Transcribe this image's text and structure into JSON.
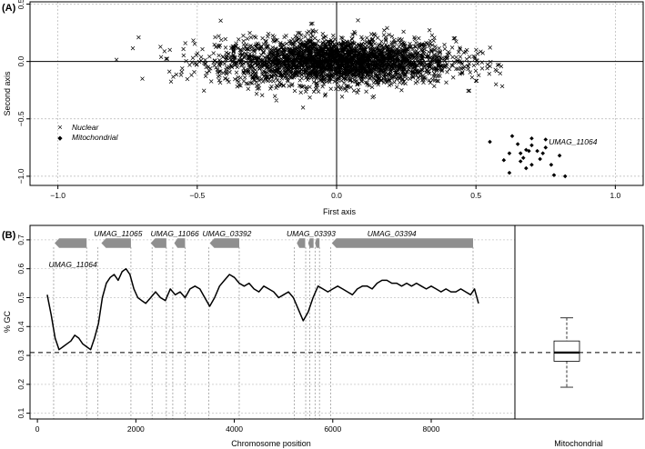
{
  "chart_data": [
    {
      "panel_label": "(A)",
      "type": "scatter",
      "xlabel": "First axis",
      "ylabel": "Second axis",
      "xlim": [
        -1.1,
        1.1
      ],
      "ylim": [
        -1.08,
        0.52
      ],
      "xticks": [
        "−1.0",
        "−0.5",
        "0.0",
        "0.5",
        "1.0"
      ],
      "xtick_values": [
        -1.0,
        -0.5,
        0.0,
        0.5,
        1.0
      ],
      "yticks": [
        "−1.0",
        "−0.5",
        "0.0",
        "0.5"
      ],
      "ytick_values": [
        -1.0,
        -0.5,
        0.0,
        0.5
      ],
      "grid": true,
      "legend": {
        "position": "left",
        "entries": [
          {
            "marker": "×",
            "label": "Nuclear"
          },
          {
            "marker": "◆",
            "label": "Mitochondrial"
          }
        ]
      },
      "annotation": {
        "text": "UMAG_11064",
        "x": 0.82,
        "y": -0.7
      },
      "series": [
        {
          "name": "Nuclear",
          "marker": "x",
          "distribution": {
            "x_mean": 0.0,
            "x_sd": 0.21,
            "y_mean": 0.0,
            "y_sd": 0.1,
            "count": 3000
          }
        },
        {
          "name": "Mitochondrial",
          "marker": "diamond",
          "points": [
            [
              0.55,
              -0.7
            ],
            [
              0.63,
              -0.65
            ],
            [
              0.65,
              -0.72
            ],
            [
              0.62,
              -0.8
            ],
            [
              0.66,
              -0.8
            ],
            [
              0.68,
              -0.77
            ],
            [
              0.7,
              -0.73
            ],
            [
              0.69,
              -0.78
            ],
            [
              0.72,
              -0.78
            ],
            [
              0.75,
              -0.75
            ],
            [
              0.73,
              -0.85
            ],
            [
              0.7,
              -0.9
            ],
            [
              0.68,
              -0.93
            ],
            [
              0.66,
              -0.87
            ],
            [
              0.62,
              -0.97
            ],
            [
              0.77,
              -0.9
            ],
            [
              0.8,
              -0.82
            ],
            [
              0.78,
              -0.99
            ],
            [
              0.82,
              -1.0
            ],
            [
              0.6,
              -0.86
            ],
            [
              0.75,
              -0.68
            ],
            [
              0.7,
              -0.67
            ],
            [
              0.67,
              -0.84
            ],
            [
              0.74,
              -0.8
            ]
          ]
        }
      ]
    },
    {
      "panel_label": "(B)",
      "type": "line",
      "xlabel": "Chromosome position",
      "ylabel": "% GC",
      "xlim": [
        -150,
        9700
      ],
      "ylim": [
        0.08,
        0.75
      ],
      "xticks": [
        "0",
        "2000",
        "4000",
        "6000",
        "8000"
      ],
      "xtick_values": [
        0,
        2000,
        4000,
        6000,
        8000
      ],
      "yticks": [
        "0.1",
        "0.2",
        "0.3",
        "0.4",
        "0.5",
        "0.6",
        "0.7"
      ],
      "ytick_values": [
        0.1,
        0.2,
        0.3,
        0.4,
        0.5,
        0.6,
        0.7
      ],
      "reference_line": 0.31,
      "gene_labels": [
        {
          "text": "UMAG_11064",
          "x": 720,
          "y": 0.605
        },
        {
          "text": "UMAG_11065",
          "x": 1640,
          "y": 0.712
        },
        {
          "text": "UMAG_11066",
          "x": 2790,
          "y": 0.712
        },
        {
          "text": "UMAG_03392",
          "x": 3850,
          "y": 0.712
        },
        {
          "text": "UMAG_03393",
          "x": 5560,
          "y": 0.712
        },
        {
          "text": "UMAG_03394",
          "x": 7200,
          "y": 0.712
        }
      ],
      "genes": [
        [
          350,
          1000
        ],
        [
          1300,
          1900
        ],
        [
          2300,
          2620
        ],
        [
          2780,
          3000
        ],
        [
          3500,
          4100
        ],
        [
          5270,
          5440
        ],
        [
          5500,
          5610
        ],
        [
          5640,
          5730
        ],
        [
          5980,
          8850
        ]
      ],
      "gene_boundaries": [
        330,
        1000,
        1230,
        1900,
        2330,
        2620,
        2750,
        3000,
        3480,
        4100,
        5220,
        5450,
        5530,
        5640,
        5730,
        5960,
        8850
      ],
      "series": [
        {
          "name": "GC content",
          "x": [
            200,
            280,
            360,
            440,
            520,
            600,
            680,
            760,
            840,
            920,
            1000,
            1080,
            1160,
            1240,
            1320,
            1400,
            1480,
            1560,
            1640,
            1720,
            1800,
            1880,
            1960,
            2040,
            2120,
            2200,
            2300,
            2400,
            2500,
            2600,
            2700,
            2800,
            2900,
            3000,
            3100,
            3200,
            3300,
            3400,
            3500,
            3600,
            3700,
            3800,
            3900,
            4000,
            4100,
            4200,
            4300,
            4400,
            4500,
            4600,
            4700,
            4800,
            4900,
            5000,
            5100,
            5200,
            5300,
            5400,
            5500,
            5600,
            5700,
            5800,
            5900,
            6000,
            6100,
            6200,
            6300,
            6400,
            6500,
            6600,
            6700,
            6800,
            6900,
            7000,
            7100,
            7200,
            7300,
            7400,
            7500,
            7600,
            7700,
            7800,
            7900,
            8000,
            8100,
            8200,
            8300,
            8400,
            8500,
            8600,
            8700,
            8800,
            8880,
            8960
          ],
          "values": [
            0.51,
            0.44,
            0.36,
            0.32,
            0.33,
            0.34,
            0.35,
            0.37,
            0.36,
            0.34,
            0.33,
            0.32,
            0.36,
            0.41,
            0.5,
            0.55,
            0.57,
            0.58,
            0.56,
            0.59,
            0.6,
            0.58,
            0.53,
            0.5,
            0.49,
            0.48,
            0.5,
            0.52,
            0.5,
            0.49,
            0.53,
            0.51,
            0.52,
            0.5,
            0.53,
            0.54,
            0.53,
            0.5,
            0.47,
            0.5,
            0.54,
            0.56,
            0.58,
            0.57,
            0.55,
            0.54,
            0.55,
            0.53,
            0.52,
            0.54,
            0.53,
            0.52,
            0.5,
            0.51,
            0.52,
            0.5,
            0.46,
            0.42,
            0.45,
            0.5,
            0.54,
            0.53,
            0.52,
            0.53,
            0.54,
            0.53,
            0.52,
            0.51,
            0.53,
            0.54,
            0.54,
            0.53,
            0.55,
            0.56,
            0.56,
            0.55,
            0.55,
            0.54,
            0.55,
            0.54,
            0.55,
            0.54,
            0.53,
            0.54,
            0.53,
            0.52,
            0.53,
            0.52,
            0.52,
            0.53,
            0.52,
            0.51,
            0.53,
            0.48
          ]
        }
      ]
    },
    {
      "type": "box",
      "xlabel": "Mitochondrial",
      "ylim": [
        0.08,
        0.75
      ],
      "box": {
        "whisker_low": 0.19,
        "q1": 0.28,
        "median": 0.31,
        "q3": 0.35,
        "whisker_high": 0.43
      },
      "reference_line": 0.31
    }
  ]
}
